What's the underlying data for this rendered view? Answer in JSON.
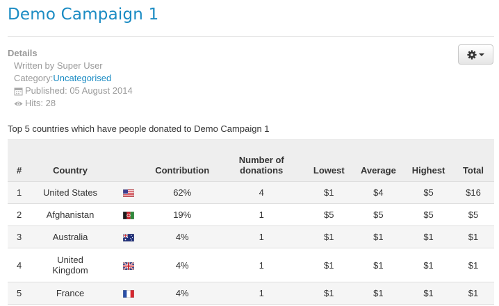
{
  "page": {
    "title": "Demo Campaign 1"
  },
  "details": {
    "heading": "Details",
    "written_by": "Written by Super User",
    "category_label": "Category: ",
    "category_link": "Uncategorised",
    "published": "Published: 05 August 2014",
    "hits": "Hits: 28"
  },
  "toolbar": {
    "icon": "gear-icon"
  },
  "intro_text": "Top 5 countries which have people donated to Demo Campaign 1",
  "table": {
    "headers": {
      "rank": "#",
      "country": "Country",
      "contribution": "Contribution",
      "donations_line1": "Number of",
      "donations_line2": "donations",
      "lowest": "Lowest",
      "average": "Average",
      "highest": "Highest",
      "total": "Total"
    },
    "rows": [
      {
        "rank": "1",
        "country": "United States",
        "flag": "us-flag",
        "contribution": "62%",
        "donations": "4",
        "lowest": "$1",
        "average": "$4",
        "highest": "$5",
        "total": "$16"
      },
      {
        "rank": "2",
        "country": "Afghanistan",
        "flag": "af-flag",
        "contribution": "19%",
        "donations": "1",
        "lowest": "$5",
        "average": "$5",
        "highest": "$5",
        "total": "$5"
      },
      {
        "rank": "3",
        "country": "Australia",
        "flag": "au-flag",
        "contribution": "4%",
        "donations": "1",
        "lowest": "$1",
        "average": "$1",
        "highest": "$1",
        "total": "$1"
      },
      {
        "rank": "4",
        "country_line1": "United",
        "country_line2": "Kingdom",
        "flag": "gb-flag",
        "contribution": "4%",
        "donations": "1",
        "lowest": "$1",
        "average": "$1",
        "highest": "$1",
        "total": "$1"
      },
      {
        "rank": "5",
        "country": "France",
        "flag": "fr-flag",
        "contribution": "4%",
        "donations": "1",
        "lowest": "$1",
        "average": "$1",
        "highest": "$1",
        "total": "$1"
      }
    ]
  },
  "colors": {
    "accent": "#1a8bc3",
    "muted": "#999999",
    "header_bg": "#eeeeee",
    "stripe_bg": "#f5f5f5"
  }
}
